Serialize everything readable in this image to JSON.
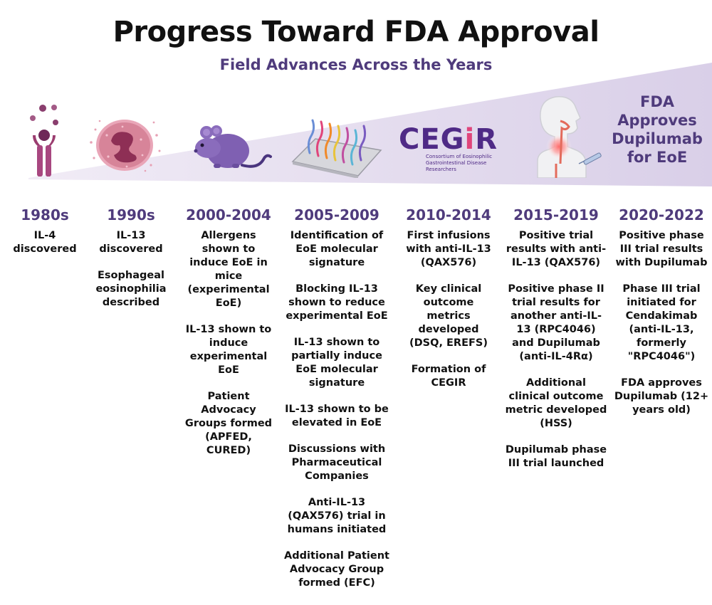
{
  "title": "Progress Toward FDA Approval",
  "subtitle": "Field Advances Across the Years",
  "logo": {
    "word_main": "CEG",
    "word_accent": "i",
    "word_end": "R",
    "tagline_1": "Consortium of Eosinophilic",
    "tagline_2": "Gastrointestinal Disease Researchers"
  },
  "fda_banner": [
    "FDA",
    "Approves",
    "Dupilumab",
    "for EoE"
  ],
  "icons": [
    "cytokine-receptor-icon",
    "eosinophil-cell-icon",
    "mouse-icon",
    "microarray-icon",
    "cegir-logo",
    "patient-throat-injection-icon",
    "fda-approval-text"
  ],
  "colors": {
    "accent": "#4f3b7c",
    "wedge": "#e4dcef",
    "logo": "#4f2a86",
    "logo_accent": "#e0457b"
  },
  "eras": [
    {
      "year": "1980s",
      "events": [
        "IL-4 discovered"
      ]
    },
    {
      "year": "1990s",
      "events": [
        "IL-13 discovered",
        "Esophageal eosinophilia described"
      ]
    },
    {
      "year": "2000-2004",
      "events": [
        "Allergens shown to induce EoE in mice (experimental EoE)",
        "IL-13 shown to induce experimental EoE",
        "Patient Advocacy Groups formed (APFED, CURED)"
      ]
    },
    {
      "year": "2005-2009",
      "events": [
        "Identification of EoE molecular signature",
        "Blocking IL-13 shown to reduce experimental EoE",
        "IL-13 shown to partially induce EoE molecular signature",
        "IL-13 shown to be elevated in EoE",
        "Discussions with Pharmaceutical Companies",
        "Anti-IL-13 (QAX576) trial in humans initiated",
        "Additional Patient Advocacy Group formed (EFC)"
      ]
    },
    {
      "year": "2010-2014",
      "events": [
        "First infusions with anti-IL-13 (QAX576)",
        "Key clinical outcome metrics developed (DSQ, EREFS)",
        "Formation of CEGIR"
      ]
    },
    {
      "year": "2015-2019",
      "events": [
        "Positive trial results with anti-IL-13 (QAX576)",
        "Positive phase II trial results for another anti-IL-13 (RPC4046) and Dupilumab (anti-IL-4Rα)",
        "Additional clinical outcome metric developed (HSS)",
        "Dupilumab phase III trial launched"
      ]
    },
    {
      "year": "2020-2022",
      "events": [
        "Positive phase III trial results with Dupilumab",
        "Phase III trial initiated for Cendakimab (anti-IL-13, formerly \"RPC4046\")",
        "FDA approves Dupilumab (12+ years old)"
      ]
    }
  ]
}
